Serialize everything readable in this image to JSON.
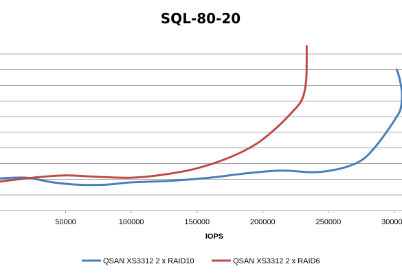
{
  "chart_data": {
    "type": "line",
    "title": "SQL-80-20",
    "xlabel": "IOPS",
    "ylabel": "",
    "xlim": [
      0,
      305000
    ],
    "ylim": [
      0,
      22
    ],
    "x_ticks": [
      50000,
      100000,
      150000,
      200000,
      250000,
      300000
    ],
    "x_tick_labels": [
      "50000",
      "100000",
      "150000",
      "200000",
      "250000",
      "300000"
    ],
    "y_gridlines": [
      2,
      4,
      6,
      8,
      10,
      12,
      14,
      16,
      18,
      20
    ],
    "grid": "horizontal",
    "legend_position": "bottom",
    "series": [
      {
        "name": "QSAN XS3312 2 x RAID10",
        "color": "#4a7ebb",
        "points": [
          [
            0,
            4.1
          ],
          [
            20000,
            4.2
          ],
          [
            40000,
            3.6
          ],
          [
            60000,
            3.3
          ],
          [
            80000,
            3.3
          ],
          [
            100000,
            3.6
          ],
          [
            130000,
            3.8
          ],
          [
            160000,
            4.2
          ],
          [
            190000,
            4.8
          ],
          [
            215000,
            5.1
          ],
          [
            240000,
            4.9
          ],
          [
            260000,
            5.4
          ],
          [
            275000,
            6.4
          ],
          [
            285000,
            8.0
          ],
          [
            295000,
            10.2
          ],
          [
            302000,
            12.0
          ],
          [
            305000,
            13.0
          ],
          [
            306000,
            15.0
          ],
          [
            304000,
            17.0
          ],
          [
            302000,
            18.0
          ]
        ]
      },
      {
        "name": "QSAN XS3312 2 x RAID6",
        "color": "#be4b48",
        "points": [
          [
            0,
            3.7
          ],
          [
            25000,
            4.2
          ],
          [
            50000,
            4.5
          ],
          [
            75000,
            4.3
          ],
          [
            100000,
            4.2
          ],
          [
            125000,
            4.6
          ],
          [
            150000,
            5.4
          ],
          [
            175000,
            6.8
          ],
          [
            195000,
            8.5
          ],
          [
            210000,
            10.5
          ],
          [
            222000,
            12.5
          ],
          [
            230000,
            14.2
          ],
          [
            233000,
            16.5
          ],
          [
            233500,
            19.0
          ],
          [
            233500,
            21.0
          ]
        ]
      }
    ]
  },
  "legend": {
    "items": [
      {
        "label": "QSAN XS3312 2 x RAID10",
        "color": "#4a7ebb"
      },
      {
        "label": "QSAN XS3312 2 x RAID6",
        "color": "#be4b48"
      }
    ]
  }
}
